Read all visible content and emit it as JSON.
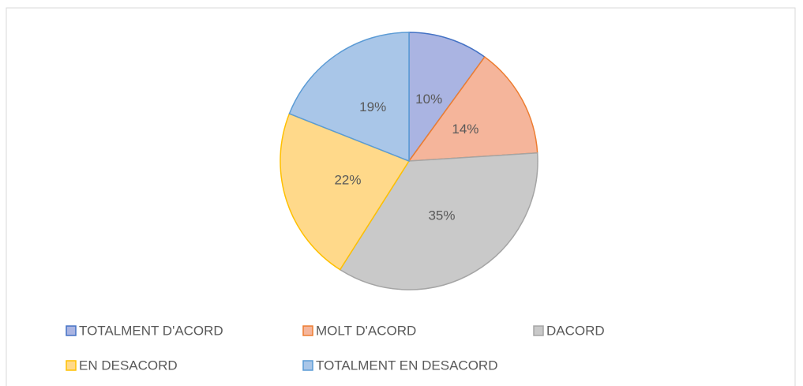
{
  "chart_data": {
    "type": "pie",
    "categories": [
      "TOTALMENT D'ACORD",
      "MOLT D'ACORD",
      "DACORD",
      "EN DESACORD",
      "TOTALMENT EN DESACORD"
    ],
    "values": [
      10,
      14,
      35,
      22,
      19
    ],
    "value_labels": [
      "10%",
      "14%",
      "35%",
      "22%",
      "19%"
    ],
    "colors": [
      "#aab4e2",
      "#f5b59b",
      "#c9c9c9",
      "#ffd98a",
      "#a9c6e8"
    ],
    "edge_colors": [
      "#4472c4",
      "#ed7d31",
      "#a5a5a5",
      "#ffc000",
      "#5b9bd5"
    ],
    "legend": "bottom"
  }
}
